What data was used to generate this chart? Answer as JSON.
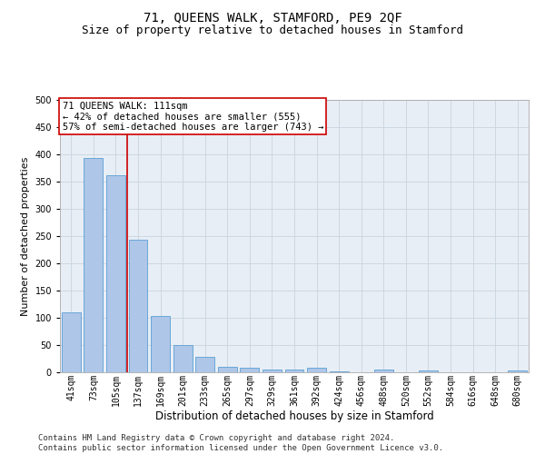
{
  "title": "71, QUEENS WALK, STAMFORD, PE9 2QF",
  "subtitle": "Size of property relative to detached houses in Stamford",
  "xlabel": "Distribution of detached houses by size in Stamford",
  "ylabel": "Number of detached properties",
  "categories": [
    "41sqm",
    "73sqm",
    "105sqm",
    "137sqm",
    "169sqm",
    "201sqm",
    "233sqm",
    "265sqm",
    "297sqm",
    "329sqm",
    "361sqm",
    "392sqm",
    "424sqm",
    "456sqm",
    "488sqm",
    "520sqm",
    "552sqm",
    "584sqm",
    "616sqm",
    "648sqm",
    "680sqm"
  ],
  "values": [
    110,
    393,
    362,
    243,
    104,
    50,
    29,
    10,
    8,
    5,
    5,
    8,
    1,
    0,
    5,
    0,
    3,
    0,
    0,
    0,
    3
  ],
  "bar_color": "#aec6e8",
  "bar_edge_color": "#5a9fd4",
  "vline_x": 2.5,
  "vline_color": "#cc0000",
  "annotation_line1": "71 QUEENS WALK: 111sqm",
  "annotation_line2": "← 42% of detached houses are smaller (555)",
  "annotation_line3": "57% of semi-detached houses are larger (743) →",
  "annotation_box_color": "#ffffff",
  "annotation_box_edgecolor": "#cc0000",
  "ylim": [
    0,
    500
  ],
  "yticks": [
    0,
    50,
    100,
    150,
    200,
    250,
    300,
    350,
    400,
    450,
    500
  ],
  "grid_color": "#c8d4e0",
  "background_color": "#e8eef5",
  "footer_text": "Contains HM Land Registry data © Crown copyright and database right 2024.\nContains public sector information licensed under the Open Government Licence v3.0.",
  "title_fontsize": 10,
  "subtitle_fontsize": 9,
  "xlabel_fontsize": 8.5,
  "ylabel_fontsize": 8,
  "tick_fontsize": 7,
  "footer_fontsize": 6.5,
  "annotation_fontsize": 7.5
}
